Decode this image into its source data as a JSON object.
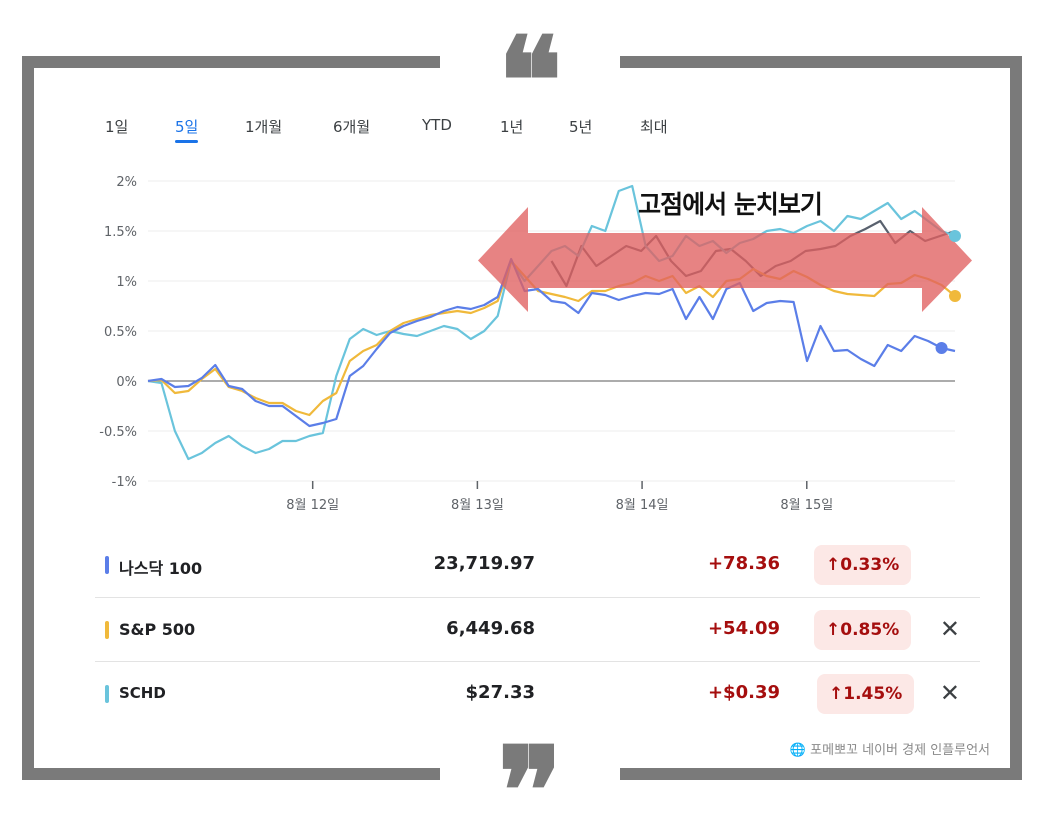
{
  "tabs": [
    {
      "label": "1일",
      "active": false
    },
    {
      "label": "5일",
      "active": true
    },
    {
      "label": "1개월",
      "active": false
    },
    {
      "label": "6개월",
      "active": false
    },
    {
      "label": "YTD",
      "active": false
    },
    {
      "label": "1년",
      "active": false
    },
    {
      "label": "5년",
      "active": false
    },
    {
      "label": "최대",
      "active": false
    }
  ],
  "quote_open": "❝",
  "quote_close": "❞",
  "chart_data": {
    "type": "line",
    "ylim": [
      -1,
      2
    ],
    "y_ticks": [
      "2%",
      "1.5%",
      "1%",
      "0.5%",
      "0%",
      "-0.5%",
      "-1%"
    ],
    "x_ticks": [
      "8월 12일",
      "8월 13일",
      "8월 14일",
      "8월 15일"
    ],
    "x_tick_positions": [
      10,
      20,
      30,
      40
    ],
    "x_range": [
      0,
      49
    ],
    "baseline": 0,
    "grid": true,
    "annotation": "고점에서 눈치보기",
    "annotation_arrow_color": "#e06060",
    "series": [
      {
        "name": "나스닥 100",
        "color": "#5b7ee8",
        "values": [
          0,
          0.02,
          -0.06,
          -0.05,
          0.03,
          0.16,
          -0.05,
          -0.08,
          -0.2,
          -0.25,
          -0.25,
          -0.35,
          -0.45,
          -0.42,
          -0.38,
          0.05,
          0.15,
          0.32,
          0.48,
          0.55,
          0.6,
          0.64,
          0.7,
          0.74,
          0.72,
          0.76,
          0.84,
          1.22,
          0.9,
          0.92,
          0.8,
          0.78,
          0.68,
          0.88,
          0.86,
          0.81,
          0.85,
          0.88,
          0.87,
          0.92,
          0.62,
          0.84,
          0.62,
          0.92,
          0.98,
          0.7,
          0.78,
          0.8,
          0.79,
          0.2,
          0.55,
          0.3,
          0.31,
          0.22,
          0.15,
          0.36,
          0.3,
          0.45,
          0.4,
          0.33,
          0.3
        ]
      },
      {
        "name": "S&P 500",
        "color": "#f0b93b",
        "values": [
          0,
          0.01,
          -0.12,
          -0.1,
          0.02,
          0.12,
          -0.06,
          -0.1,
          -0.17,
          -0.22,
          -0.22,
          -0.3,
          -0.34,
          -0.2,
          -0.12,
          0.2,
          0.3,
          0.36,
          0.5,
          0.58,
          0.62,
          0.66,
          0.68,
          0.7,
          0.68,
          0.73,
          0.8,
          1.2,
          1.05,
          0.9,
          0.87,
          0.84,
          0.8,
          0.9,
          0.9,
          0.95,
          0.98,
          1.05,
          1.0,
          1.05,
          0.88,
          0.95,
          0.84,
          1.0,
          1.02,
          1.12,
          1.05,
          1.02,
          1.1,
          1.04,
          0.96,
          0.9,
          0.87,
          0.86,
          0.85,
          0.97,
          0.98,
          1.06,
          1.02,
          0.96,
          0.85
        ]
      },
      {
        "name": "SCHD",
        "color": "#6ac4dc",
        "values": [
          0,
          -0.02,
          -0.5,
          -0.78,
          -0.72,
          -0.62,
          -0.55,
          -0.65,
          -0.72,
          -0.68,
          -0.6,
          -0.6,
          -0.55,
          -0.52,
          0.05,
          0.42,
          0.52,
          0.46,
          0.5,
          0.47,
          0.45,
          0.5,
          0.55,
          0.52,
          0.42,
          0.5,
          0.65,
          1.2,
          1.0,
          1.15,
          1.3,
          1.35,
          1.25,
          1.55,
          1.5,
          1.9,
          1.95,
          1.35,
          1.2,
          1.25,
          1.45,
          1.35,
          1.4,
          1.28,
          1.38,
          1.42,
          1.5,
          1.52,
          1.48,
          1.55,
          1.6,
          1.5,
          1.65,
          1.62,
          1.7,
          1.78,
          1.62,
          1.7,
          1.6,
          1.5,
          1.45
        ]
      },
      {
        "name": "",
        "color": "#59616e",
        "values": [
          null,
          null,
          null,
          null,
          null,
          null,
          null,
          null,
          null,
          null,
          null,
          null,
          null,
          null,
          null,
          null,
          null,
          null,
          null,
          null,
          null,
          null,
          null,
          null,
          null,
          null,
          null,
          1.2,
          0.95,
          1.35,
          1.15,
          1.25,
          1.35,
          1.3,
          1.45,
          1.2,
          1.05,
          1.1,
          1.3,
          1.32,
          1.2,
          1.05,
          1.15,
          1.2,
          1.3,
          1.32,
          1.35,
          1.45,
          1.52,
          1.6,
          1.38,
          1.5,
          1.4,
          1.45,
          1.5
        ]
      }
    ]
  },
  "rows": [
    {
      "name": "나스닥 100",
      "color": "#5b7ee8",
      "price": "23,719.97",
      "change": "+78.36",
      "pct": "↑0.33%",
      "close": ""
    },
    {
      "name": "S&P 500",
      "color": "#f0b93b",
      "price": "6,449.68",
      "change": "+54.09",
      "pct": "↑0.85%",
      "close": "✕"
    },
    {
      "name": "SCHD",
      "color": "#6ac4dc",
      "price": "$27.33",
      "change": "+$0.39",
      "pct": "↑1.45%",
      "close": "✕"
    }
  ],
  "credit": "🌐 포메뽀꼬 네이버 경제 인플루언서"
}
